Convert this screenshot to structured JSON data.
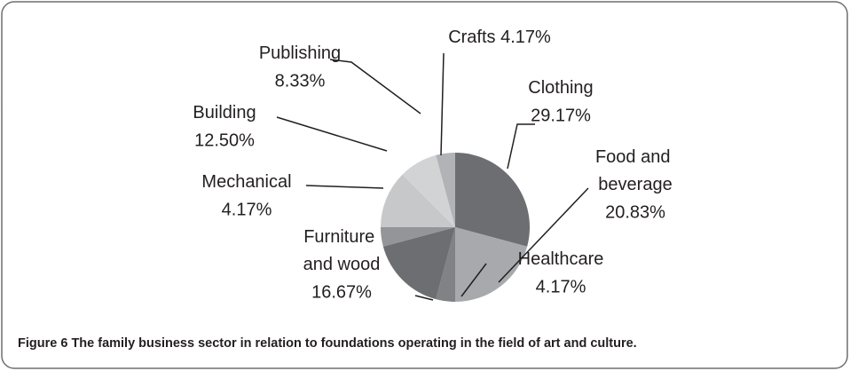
{
  "chart_data": {
    "type": "pie",
    "categories": [
      "Clothing",
      "Food and beverage",
      "Healthcare",
      "Furniture and wood",
      "Mechanical",
      "Building",
      "Publishing",
      "Crafts"
    ],
    "values": [
      29.17,
      20.83,
      4.17,
      16.67,
      4.17,
      12.5,
      8.33,
      4.17
    ],
    "value_labels": [
      "29.17%",
      "20.83%",
      "4.17%",
      "16.67%",
      "4.17%",
      "12.50%",
      "8.33%",
      "4.17%"
    ],
    "colors": [
      "#6d6e71",
      "#a7a9ac",
      "#808285",
      "#6d6e71",
      "#939598",
      "#c7c8ca",
      "#d1d3d4",
      "#b1b3b6"
    ]
  },
  "caption": {
    "label": "Figure 6",
    "text": "The family business sector in relation to foundations operating in the field of art and culture."
  }
}
